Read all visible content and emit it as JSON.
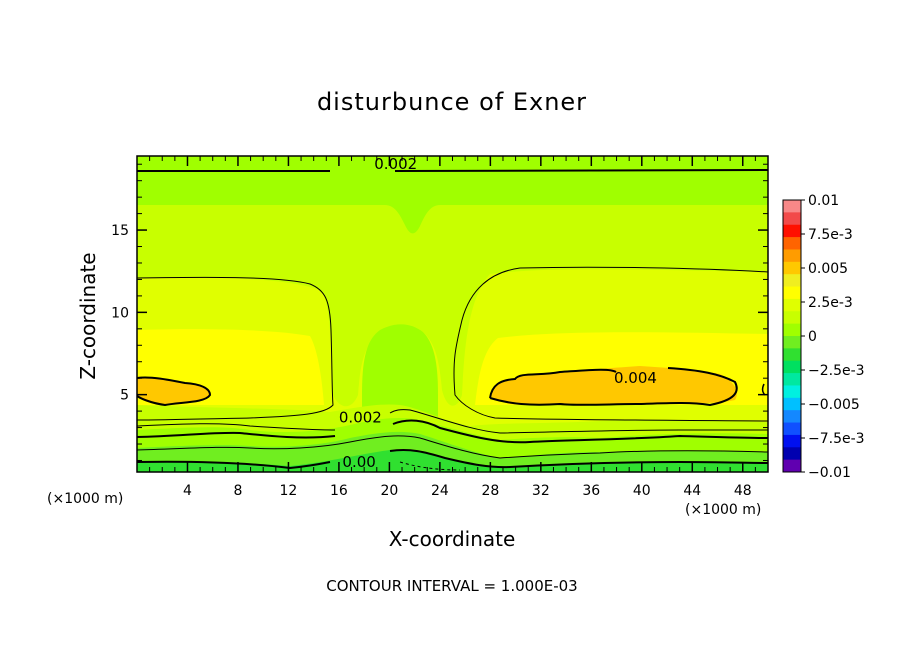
{
  "chart_data": {
    "type": "heatmap",
    "title": "disturbunce of Exner",
    "xlabel": "X-coordinate",
    "ylabel": "Z-coordinate",
    "x_unit_label": "(×1000 m)",
    "footer": "CONTOUR INTERVAL = 1.000E-03",
    "xlim": [
      0,
      50
    ],
    "ylim": [
      0.3,
      19.5
    ],
    "x_ticks": [
      "4",
      "8",
      "12",
      "16",
      "20",
      "24",
      "28",
      "32",
      "36",
      "40",
      "44",
      "48"
    ],
    "y_ticks": [
      "5",
      "10",
      "15"
    ],
    "x_tick_values": [
      4,
      8,
      12,
      16,
      20,
      24,
      28,
      32,
      36,
      40,
      44,
      48
    ],
    "y_tick_values": [
      5,
      10,
      15
    ],
    "contour_interval": 0.001,
    "contour_labels": [
      {
        "text": "0.002",
        "x": 20.5,
        "z": 19.0
      },
      {
        "text": "0.004",
        "x": 39.5,
        "z": 6.0
      },
      {
        "text": "0.002",
        "x": 17.7,
        "z": 3.6
      },
      {
        "text": "0.00",
        "x": 17.6,
        "z": 0.9
      }
    ],
    "colorbar": {
      "labels": [
        "0.01",
        "7.5e-3",
        "0.005",
        "2.5e-3",
        "0",
        "−2.5e-3",
        "−0.005",
        "−7.5e-3",
        "−0.01"
      ],
      "levels_top_to_bottom": [
        0.01,
        0.0075,
        0.005,
        0.0025,
        0,
        -0.0025,
        -0.005,
        -0.0075,
        -0.01
      ],
      "colors_top_to_bottom": [
        "#f88888",
        "#f24a4a",
        "#ff1000",
        "#ff6400",
        "#ff9c00",
        "#ffc800",
        "#f0ee20",
        "#ffff00",
        "#e0ff00",
        "#c8ff00",
        "#a0ff00",
        "#70ee20",
        "#30e030",
        "#00e060",
        "#00e8a0",
        "#00f0e0",
        "#00c0ff",
        "#1488ff",
        "#1050ff",
        "#0010f0",
        "#0000b0",
        "#6000b0"
      ]
    }
  }
}
